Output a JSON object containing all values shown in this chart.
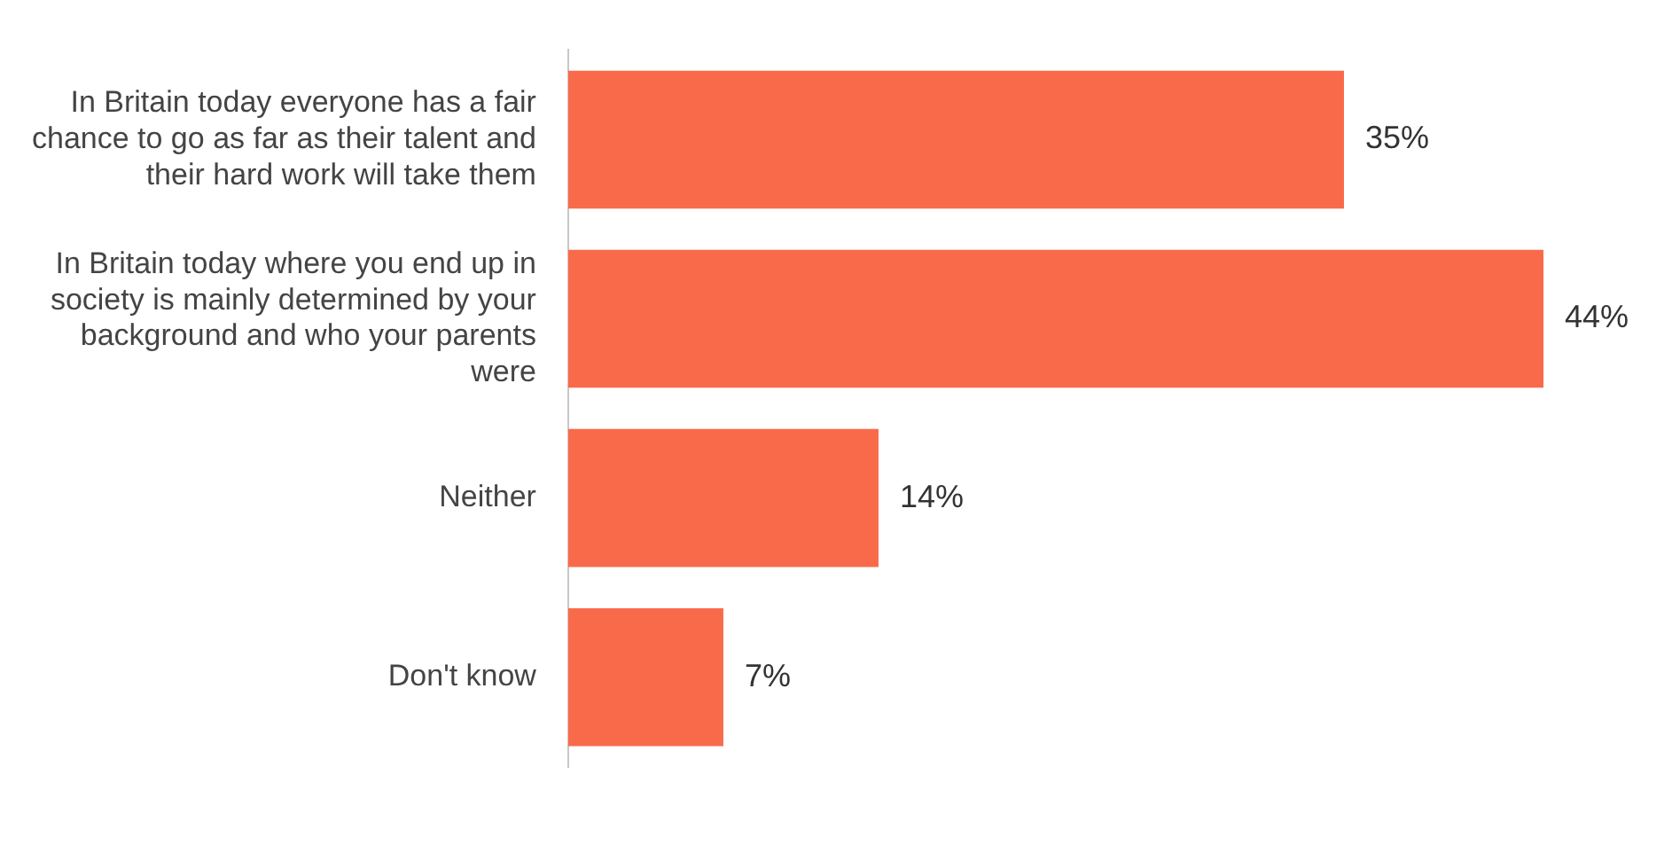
{
  "chart_data": {
    "type": "bar",
    "orientation": "horizontal",
    "categories": [
      "In Britain today everyone has a fair chance to go as far as their talent and their hard work will take them",
      "In Britain today where you end up in society is mainly determined by your background and who your parents were",
      "Neither",
      "Don't know"
    ],
    "values": [
      35,
      44,
      14,
      7
    ],
    "value_labels": [
      "35%",
      "44%",
      "14%",
      "7%"
    ],
    "color": "#f96a4b",
    "tick_labels": "y"
  }
}
